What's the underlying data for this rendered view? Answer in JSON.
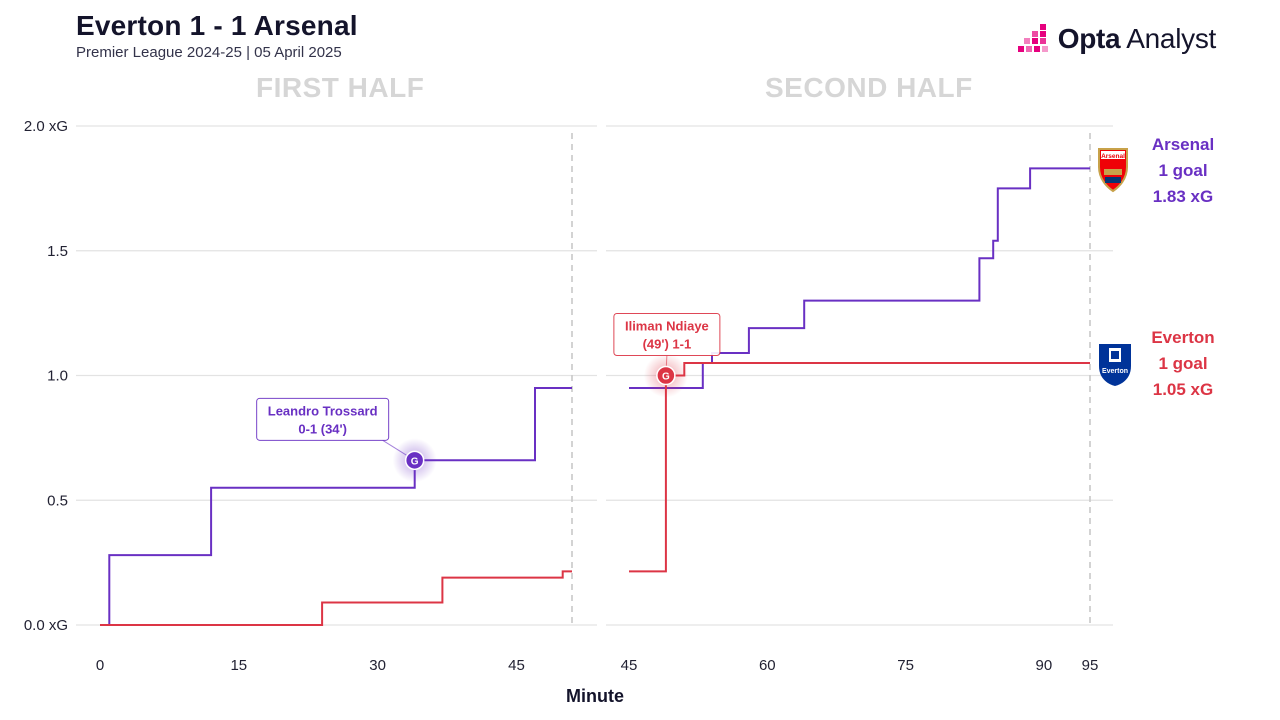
{
  "header": {
    "title": "Everton 1 - 1 Arsenal",
    "subtitle": "Premier League 2024-25 | 05 April 2025",
    "brand_bold": "Opta",
    "brand_light": " Analyst"
  },
  "chart_data": {
    "type": "line",
    "step": true,
    "halves": [
      {
        "label": "FIRST HALF",
        "xlim": [
          0,
          51
        ],
        "xticks": [
          0,
          15,
          30,
          45
        ],
        "end_marker": 51
      },
      {
        "label": "SECOND HALF",
        "xlim": [
          45,
          97
        ],
        "xticks": [
          45,
          60,
          75,
          90,
          95
        ],
        "end_marker": 95
      }
    ],
    "ylim": [
      0,
      2.0
    ],
    "yticks": [
      {
        "value": 0.0,
        "label": "0.0 xG"
      },
      {
        "value": 0.5,
        "label": "0.5"
      },
      {
        "value": 1.0,
        "label": "1.0"
      },
      {
        "value": 1.5,
        "label": "1.5"
      },
      {
        "value": 2.0,
        "label": "2.0 xG"
      }
    ],
    "xlabel": "Minute",
    "series": [
      {
        "name": "Arsenal",
        "color": "#6930c3",
        "summary": [
          "Arsenal",
          "1 goal",
          "1.83 xG"
        ],
        "first_half": [
          [
            0,
            0
          ],
          [
            1,
            0
          ],
          [
            1,
            0.28
          ],
          [
            12,
            0.28
          ],
          [
            12,
            0.55
          ],
          [
            34,
            0.55
          ],
          [
            34,
            0.66
          ],
          [
            47,
            0.66
          ],
          [
            47,
            0.95
          ],
          [
            51,
            0.95
          ]
        ],
        "second_half": [
          [
            45,
            0.95
          ],
          [
            53,
            0.95
          ],
          [
            53,
            1.05
          ],
          [
            54,
            1.05
          ],
          [
            54,
            1.09
          ],
          [
            58,
            1.09
          ],
          [
            58,
            1.19
          ],
          [
            64,
            1.19
          ],
          [
            64,
            1.3
          ],
          [
            83,
            1.3
          ],
          [
            83,
            1.47
          ],
          [
            84.5,
            1.47
          ],
          [
            84.5,
            1.54
          ],
          [
            85,
            1.54
          ],
          [
            85,
            1.75
          ],
          [
            88.5,
            1.75
          ],
          [
            88.5,
            1.83
          ],
          [
            95,
            1.83
          ]
        ]
      },
      {
        "name": "Everton",
        "color": "#dc3545",
        "summary": [
          "Everton",
          "1 goal",
          "1.05 xG"
        ],
        "first_half": [
          [
            0,
            0
          ],
          [
            24,
            0
          ],
          [
            24,
            0.09
          ],
          [
            37,
            0.09
          ],
          [
            37,
            0.19
          ],
          [
            50,
            0.19
          ],
          [
            50,
            0.215
          ],
          [
            51,
            0.215
          ]
        ],
        "second_half": [
          [
            45,
            0.215
          ],
          [
            49,
            0.215
          ],
          [
            49,
            1.0
          ],
          [
            51,
            1.0
          ],
          [
            51,
            1.05
          ],
          [
            95,
            1.05
          ]
        ]
      }
    ],
    "goals": [
      {
        "half": 0,
        "minute": 34,
        "xg": 0.66,
        "team": "Arsenal",
        "marker": "G",
        "lines": [
          "Leandro Trossard",
          "0-1 (34')"
        ]
      },
      {
        "half": 1,
        "minute": 49,
        "xg": 1.0,
        "team": "Everton",
        "marker": "G",
        "lines": [
          "Iliman Ndiaye",
          "(49') 1-1"
        ]
      }
    ],
    "badges": {
      "arsenal": "Arsenal",
      "everton": "Everton"
    }
  }
}
